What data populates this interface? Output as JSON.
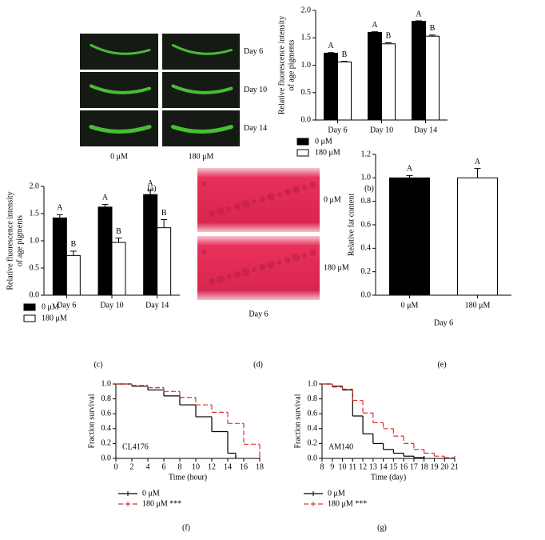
{
  "chart_data": [
    {
      "type": "image",
      "panel_label": "(a)",
      "row_labels": [
        "Day 6",
        "Day 10",
        "Day 14"
      ],
      "column_labels": [
        "0 μM",
        "180 μM"
      ]
    },
    {
      "type": "bar",
      "panel_label": "(b)",
      "ylabel": [
        "Relative fluorescence intensity",
        "of age pigments"
      ],
      "categories": [
        "Day 6",
        "Day 10",
        "Day 14"
      ],
      "series": [
        {
          "name": "0 μM",
          "color": "#000000",
          "values": [
            1.22,
            1.6,
            1.8
          ],
          "errors": [
            0.01,
            0.01,
            0.01
          ],
          "letters": [
            "A",
            "A",
            "A"
          ]
        },
        {
          "name": "180 μM",
          "color": "#ffffff",
          "values": [
            1.06,
            1.39,
            1.53
          ],
          "errors": [
            0.01,
            0.02,
            0.02
          ],
          "letters": [
            "B",
            "B",
            "B"
          ]
        }
      ],
      "ylim": [
        0,
        2
      ],
      "yticks": [
        {
          "value": 0,
          "label": "0.0"
        },
        0.5,
        {
          "value": 1,
          "label": "1.0"
        },
        1.5,
        {
          "value": 2,
          "label": "2.0"
        }
      ]
    },
    {
      "type": "bar",
      "panel_label": "(c)",
      "ylabel": [
        "Relative fluorescence intensity",
        "of age pigments"
      ],
      "categories": [
        "Day 6",
        "Day 10",
        "Day 14"
      ],
      "series": [
        {
          "name": "0 μM",
          "color": "#000000",
          "values": [
            1.42,
            1.62,
            1.85
          ],
          "errors": [
            0.06,
            0.05,
            0.08
          ],
          "letters": [
            "A",
            "A",
            "A"
          ]
        },
        {
          "name": "180 μM",
          "color": "#ffffff",
          "values": [
            0.73,
            0.97,
            1.24
          ],
          "errors": [
            0.08,
            0.08,
            0.15
          ],
          "letters": [
            "B",
            "B",
            "B"
          ]
        }
      ],
      "ylim": [
        0,
        2
      ],
      "yticks": [
        {
          "value": 0,
          "label": "0.0"
        },
        0.5,
        {
          "value": 1,
          "label": "1.0"
        },
        1.5,
        {
          "value": 2,
          "label": "2.0"
        }
      ]
    },
    {
      "type": "image",
      "panel_label": "(d)",
      "row_labels": [
        "0 μM",
        "180 μM"
      ],
      "caption": "Day 6"
    },
    {
      "type": "bar",
      "panel_label": "(e)",
      "ylabel": [
        "Relative fat content"
      ],
      "xlabel": "Day 6",
      "categories": [
        "0 μM",
        "180 μM"
      ],
      "values": [
        1.0,
        1.0
      ],
      "colors": [
        "#000000",
        "#ffffff"
      ],
      "errors": [
        0.02,
        0.08
      ],
      "letters": [
        "A",
        "A"
      ],
      "ylim": [
        0,
        1.2
      ],
      "yticks": [
        {
          "value": 0,
          "label": "0.0"
        },
        0.2,
        0.4,
        0.6,
        0.8,
        {
          "value": 1,
          "label": "1.0"
        },
        1.2
      ]
    },
    {
      "type": "step",
      "panel_label": "(f)",
      "annotation": "CL4176",
      "xlabel": "Time (hour)",
      "ylabel": [
        "Fraction survival"
      ],
      "series": [
        {
          "name": "0 μM",
          "color": "#000000",
          "line_style": "solid",
          "x": [
            0,
            2,
            4,
            6,
            8,
            10,
            12,
            14,
            15
          ],
          "values": [
            1.0,
            0.97,
            0.92,
            0.84,
            0.72,
            0.56,
            0.36,
            0.07,
            0
          ]
        },
        {
          "name": "180 μM ***",
          "color": "#e03030",
          "line_style": "dashed",
          "x": [
            0,
            2,
            4,
            6,
            8,
            10,
            12,
            14,
            16,
            18
          ],
          "values": [
            1.0,
            0.98,
            0.95,
            0.9,
            0.82,
            0.72,
            0.62,
            0.47,
            0.19,
            0
          ]
        }
      ],
      "xlim": [
        0,
        18
      ],
      "xticks": [
        0,
        2,
        4,
        6,
        8,
        10,
        12,
        14,
        16,
        18
      ],
      "ylim": [
        0,
        1
      ],
      "yticks": [
        {
          "value": 0,
          "label": "0.0"
        },
        0.2,
        0.4,
        0.6,
        0.8,
        {
          "value": 1,
          "label": "1.0"
        }
      ]
    },
    {
      "type": "step",
      "panel_label": "(g)",
      "annotation": "AM140",
      "xlabel": "Time (day)",
      "ylabel": [
        "Fraction survival"
      ],
      "series": [
        {
          "name": "0 μM",
          "color": "#000000",
          "line_style": "solid",
          "x": [
            8,
            9,
            10,
            11,
            12,
            13,
            14,
            15,
            16,
            17,
            18
          ],
          "values": [
            1.0,
            0.97,
            0.92,
            0.57,
            0.33,
            0.2,
            0.12,
            0.07,
            0.03,
            0.01,
            0
          ]
        },
        {
          "name": "180 μM ***",
          "color": "#e03030",
          "line_style": "dashed",
          "x": [
            8,
            9,
            10,
            11,
            12,
            13,
            14,
            15,
            16,
            17,
            18,
            19,
            20,
            21
          ],
          "values": [
            1.0,
            0.96,
            0.93,
            0.78,
            0.61,
            0.48,
            0.4,
            0.3,
            0.2,
            0.12,
            0.07,
            0.03,
            0.01,
            0
          ]
        }
      ],
      "xlim": [
        8,
        21
      ],
      "xticks": [
        8,
        9,
        10,
        11,
        12,
        13,
        14,
        15,
        16,
        17,
        18,
        19,
        20,
        21
      ],
      "ylim": [
        0,
        1
      ],
      "yticks": [
        {
          "value": 0,
          "label": "0.0"
        },
        0.2,
        0.4,
        0.6,
        0.8,
        {
          "value": 1,
          "label": "1.0"
        }
      ]
    }
  ]
}
